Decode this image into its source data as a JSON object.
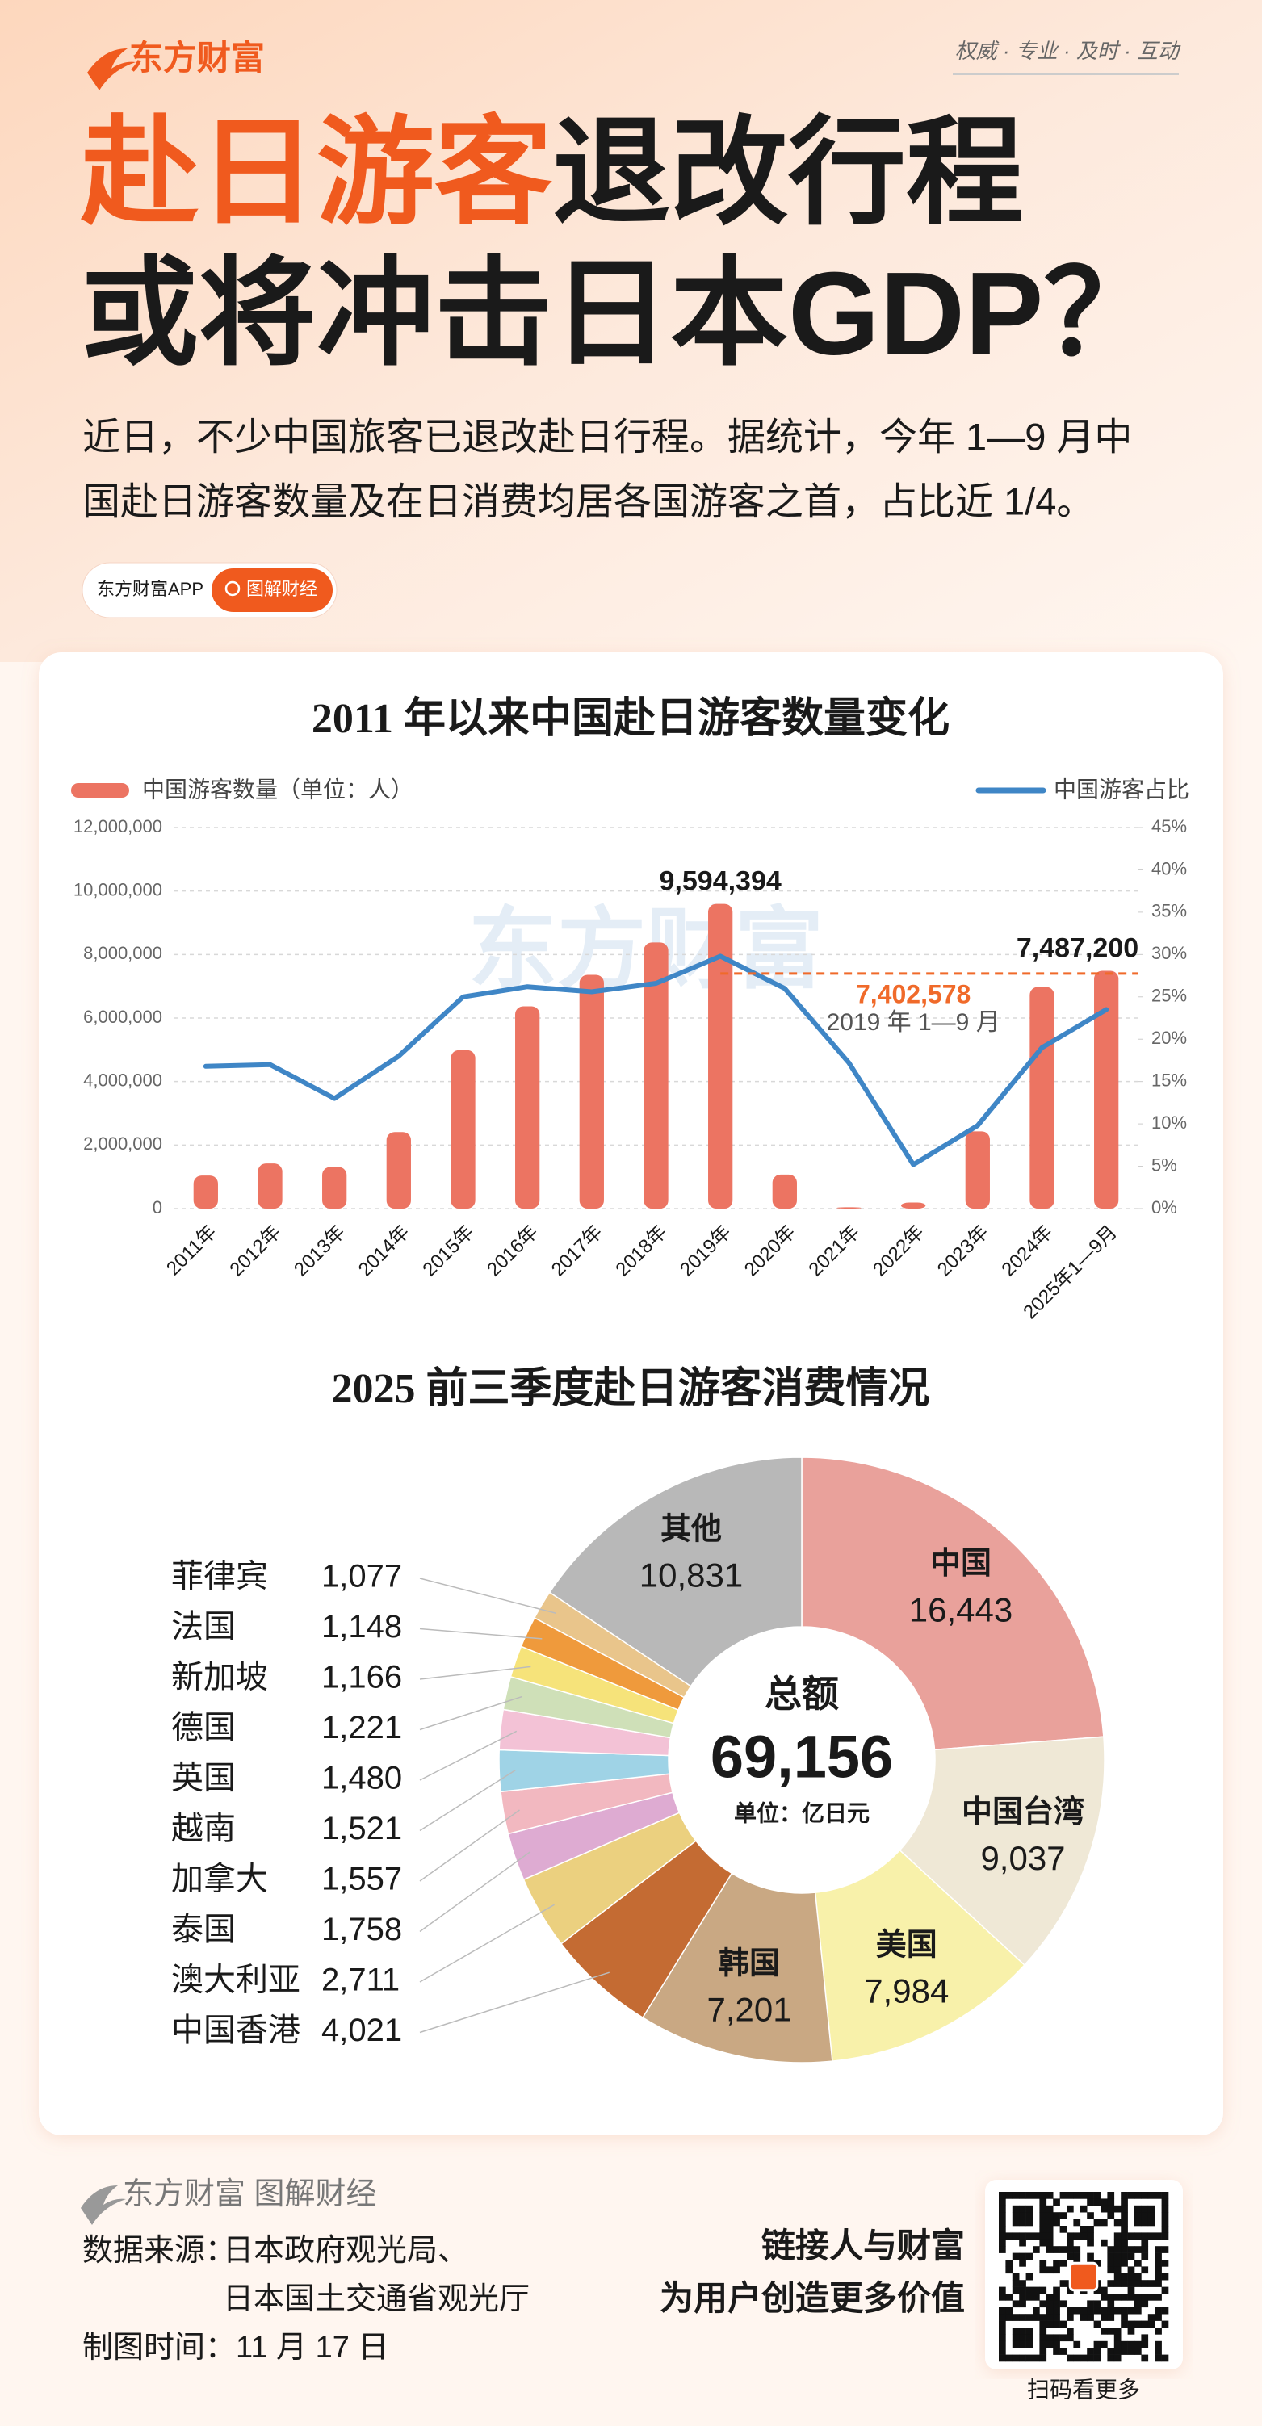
{
  "header": {
    "logo": "东方财富",
    "slogan": "权威 · 专业 · 及时 · 互动",
    "title_highlight": "赴日游客",
    "title_rest": "退改行程",
    "title_line2": "或将冲击日本GDP？",
    "intro": [
      "近日，不少中国旅客已退改赴日行程。据统计，今年 1—9 月中",
      "国赴日游客数量及在日消费均居各国游客之首，占比近 1/4。"
    ],
    "tag": {
      "app": "东方财富APP",
      "label": "图解财经"
    }
  },
  "watermark": "东方财富",
  "chart_data": [
    {
      "type": "bar-line",
      "title": "2011 年以来中国赴日游客数量变化",
      "categories": [
        "2011年",
        "2012年",
        "2013年",
        "2014年",
        "2015年",
        "2016年",
        "2017年",
        "2018年",
        "2019年",
        "2020年",
        "2021年",
        "2022年",
        "2023年",
        "2024年",
        "2025年1—9月"
      ],
      "series": [
        {
          "name": "中国游客数量（单位：人）",
          "type": "bar",
          "color": "#ec7462",
          "values": [
            1040000,
            1420000,
            1310000,
            2410000,
            4990000,
            6370000,
            7360000,
            8380000,
            9594394,
            1070000,
            40000,
            190000,
            2430000,
            6980000,
            7487200
          ],
          "value_labels": [
            null,
            null,
            null,
            null,
            null,
            null,
            null,
            null,
            "9,594,394",
            null,
            null,
            null,
            null,
            null,
            "7,487,200"
          ]
        },
        {
          "name": "中国游客占比",
          "type": "line",
          "axis": "y2",
          "color": "#3f86c6",
          "values": [
            16.8,
            17.0,
            13.0,
            18.0,
            25.0,
            26.2,
            25.6,
            26.6,
            29.8,
            26.0,
            17.2,
            5.2,
            9.8,
            19.0,
            23.5
          ]
        }
      ],
      "ylim": [
        0,
        12000000
      ],
      "yticks": [
        0,
        {
          "value": 2000000,
          "label": "2,000,000"
        },
        {
          "value": 4000000,
          "label": "4,000,000"
        },
        {
          "value": 6000000,
          "label": "6,000,000"
        },
        {
          "value": 8000000,
          "label": "8,000,000"
        },
        {
          "value": 10000000,
          "label": "10,000,000"
        },
        {
          "value": 12000000,
          "label": "12,000,000"
        }
      ],
      "y2lim": [
        0,
        45
      ],
      "y2ticks": [
        {
          "value": 0,
          "label": "0%"
        },
        {
          "value": 5,
          "label": "5%"
        },
        {
          "value": 10,
          "label": "10%"
        },
        {
          "value": 15,
          "label": "15%"
        },
        {
          "value": 20,
          "label": "20%"
        },
        {
          "value": 25,
          "label": "25%"
        },
        {
          "value": 30,
          "label": "30%"
        },
        {
          "value": 35,
          "label": "35%"
        },
        {
          "value": 40,
          "label": "40%"
        },
        {
          "value": 45,
          "label": "45%"
        }
      ],
      "grid": true,
      "legend": "top",
      "reference_line": {
        "value": 7402578,
        "label": "7,402,578",
        "note": "2019 年 1—9 月",
        "color": "#f06a2a"
      }
    },
    {
      "type": "donut",
      "title": "2025 前三季度赴日游客消费情况",
      "categories": [
        "中国",
        "中国台湾",
        "美国",
        "韩国",
        "中国香港",
        "澳大利亚",
        "泰国",
        "加拿大",
        "越南",
        "英国",
        "德国",
        "新加坡",
        "法国",
        "菲律宾",
        "其他"
      ],
      "values": [
        16443,
        9037,
        7984,
        7201,
        4021,
        2711,
        1758,
        1557,
        1521,
        1480,
        1221,
        1166,
        1148,
        1077,
        10831
      ],
      "value_labels": [
        "16,443",
        "9,037",
        "7,984",
        "7,201",
        "4,021",
        "2,711",
        "1,758",
        "1,557",
        "1,521",
        "1,480",
        "1,221",
        "1,166",
        "1,148",
        "1,077",
        "10,831"
      ],
      "colors": [
        "#e9a19b",
        "#efe8d6",
        "#f8f1aa",
        "#c9a883",
        "#c46b33",
        "#ebd07f",
        "#deabd2",
        "#f2b8c0",
        "#9fd3e6",
        "#f3c2d6",
        "#cfe0b8",
        "#f6e37a",
        "#ef9a3c",
        "#e9c58b",
        "#b8b8b8"
      ],
      "total_title": "总额",
      "total": {
        "value": 69156,
        "label": "69,156"
      },
      "unit": "单位：亿日元"
    }
  ],
  "footer": {
    "brand": "东方财富 图解财经",
    "source_label": "数据来源：",
    "sources": [
      "日本政府观光局、",
      "日本国土交通省观光厅"
    ],
    "date": "制图时间：11 月 17 日",
    "slogans": [
      "链接人与财富",
      "为用户创造更多价值"
    ],
    "qr_caption": "扫码看更多"
  }
}
